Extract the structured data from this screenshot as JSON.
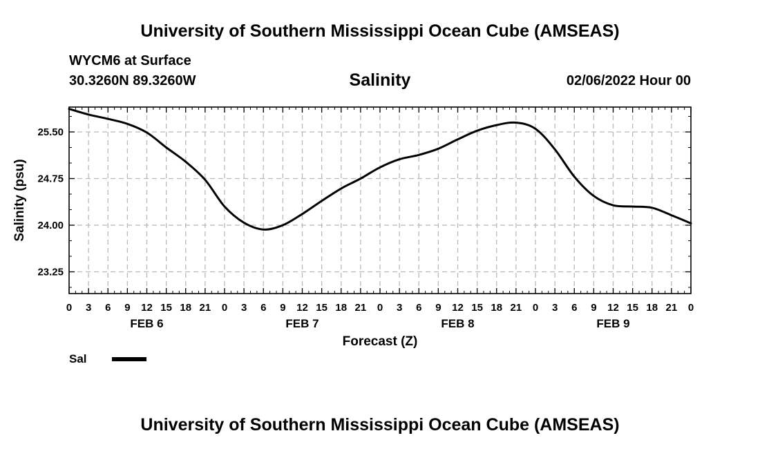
{
  "header": {
    "title": "University of Southern Mississippi Ocean Cube (AMSEAS)",
    "station": "WYCM6 at Surface",
    "coords": "30.3260N  89.3260W",
    "datetime": "02/06/2022 Hour 00"
  },
  "footer": {
    "title": "University of Southern Mississippi Ocean Cube (AMSEAS)"
  },
  "legend": {
    "label": "Sal",
    "color": "#000000"
  },
  "chart_data": {
    "type": "line",
    "title": "Salinity",
    "xlabel": "Forecast (Z)",
    "ylabel": "Salinity (psu)",
    "xlim": [
      0,
      96
    ],
    "ylim": [
      22.9,
      25.9
    ],
    "grid": true,
    "x_tick_hours": [
      0,
      3,
      6,
      9,
      12,
      15,
      18,
      21,
      24,
      27,
      30,
      33,
      36,
      39,
      42,
      45,
      48,
      51,
      54,
      57,
      60,
      63,
      66,
      69,
      72,
      75,
      78,
      81,
      84,
      87,
      90,
      93,
      96
    ],
    "x_tick_labels": [
      "0",
      "3",
      "6",
      "9",
      "12",
      "15",
      "18",
      "21",
      "0",
      "3",
      "6",
      "9",
      "12",
      "15",
      "18",
      "21",
      "0",
      "3",
      "6",
      "9",
      "12",
      "15",
      "18",
      "21",
      "0",
      "3",
      "6",
      "9",
      "12",
      "15",
      "18",
      "21",
      "0"
    ],
    "day_labels": [
      {
        "label": "FEB 6",
        "hour": 12
      },
      {
        "label": "FEB 7",
        "hour": 36
      },
      {
        "label": "FEB 8",
        "hour": 60
      },
      {
        "label": "FEB 9",
        "hour": 84
      }
    ],
    "y_ticks": [
      23.25,
      24.0,
      24.75,
      25.5
    ],
    "y_tick_labels": [
      "23.25",
      "24.00",
      "24.75",
      "25.50"
    ],
    "series": [
      {
        "name": "Sal",
        "color": "#000000",
        "x": [
          0,
          3,
          6,
          9,
          12,
          15,
          18,
          21,
          24,
          27,
          30,
          33,
          36,
          39,
          42,
          45,
          48,
          51,
          54,
          57,
          60,
          63,
          66,
          69,
          72,
          75,
          78,
          81,
          84,
          87,
          90,
          93,
          96
        ],
        "values": [
          25.87,
          25.78,
          25.71,
          25.63,
          25.49,
          25.25,
          25.02,
          24.73,
          24.3,
          24.04,
          23.93,
          24.0,
          24.18,
          24.39,
          24.59,
          24.75,
          24.93,
          25.06,
          25.13,
          25.23,
          25.38,
          25.52,
          25.61,
          25.65,
          25.55,
          25.22,
          24.78,
          24.47,
          24.32,
          24.3,
          24.28,
          24.16,
          24.03
        ]
      }
    ]
  }
}
